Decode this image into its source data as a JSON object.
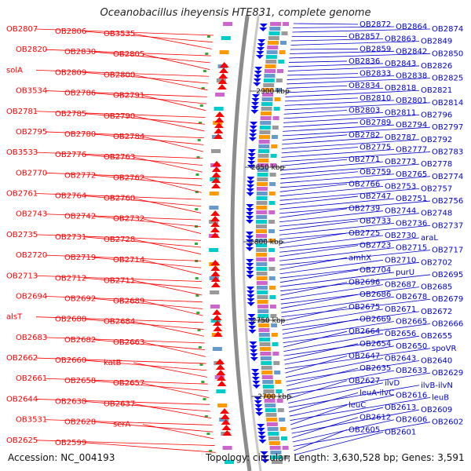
{
  "title": "Oceanobacillus iheyensis HTE831, complete genome",
  "accession": "Accession: NC_004193",
  "topology": "Topology: circular; Length: 3,630,528 bp; Genes: 3,591",
  "colors": {
    "left_labels": "#ff0000",
    "right_labels": "#0000cc",
    "backbone": "#8c8c8c"
  },
  "kbp_marks": [
    "2900 kbp",
    "2850 kbp",
    "2800 kbp",
    "2750 kbp",
    "2700 kbp"
  ],
  "left_labels": [
    "OB2807",
    "OB2806",
    "OB3535",
    "OB2820",
    "OB2830",
    "OB2805",
    "solA",
    "OB2809",
    "OB2800",
    "OB3534",
    "OB2786",
    "OB2791",
    "OB2781",
    "OB2785",
    "OB2790",
    "OB2795",
    "OB2780",
    "OB2784",
    "OB3533",
    "OB2776",
    "OB2763",
    "OB2770",
    "OB2772",
    "OB2762",
    "OB2761",
    "OB2764",
    "OB2760",
    "OB2743",
    "OB2742",
    "OB2732",
    "OB2735",
    "OB2731",
    "OB2728",
    "OB2720",
    "OB2719",
    "OB2714",
    "OB2713",
    "OB2712",
    "OB2711",
    "OB2694",
    "OB2692",
    "OB2689",
    "alsT",
    "OB2688",
    "OB2684",
    "OB2683",
    "OB2682",
    "OB2663",
    "OB2662",
    "OB2660",
    "katB",
    "OB2661",
    "OB2658",
    "OB2657",
    "OB2644",
    "OB2638",
    "OB2637",
    "OB3531",
    "OB2628",
    "serA",
    "OB2625",
    "OB2599"
  ],
  "right_labels": [
    "OB2872",
    "OB2864",
    "OB2874",
    "OB2857",
    "OB2863",
    "OB2849",
    "OB2859",
    "OB2842",
    "OB2850",
    "OB2836",
    "OB2843",
    "OB2826",
    "OB2833",
    "OB2838",
    "OB2825",
    "OB2834",
    "OB2818",
    "OB2821",
    "OB2810",
    "OB2801",
    "OB2814",
    "OB2803",
    "OB2811",
    "OB2796",
    "OB2789",
    "OB2794",
    "OB2797",
    "OB2782",
    "OB2787",
    "OB2792",
    "OB2775",
    "OB2777",
    "OB2783",
    "OB2771",
    "OB2773",
    "OB2778",
    "OB2759",
    "OB2765",
    "OB2774",
    "OB2766",
    "OB2753",
    "OB2757",
    "OB2747",
    "OB2751",
    "OB2756",
    "OB2739",
    "OB2744",
    "OB2748",
    "OB2733",
    "OB2736",
    "OB2737",
    "OB2725",
    "OB2730",
    "araL",
    "OB2723",
    "OB2715",
    "OB2717",
    "amhX",
    "OB2710",
    "OB2702",
    "OB2704",
    "purU",
    "OB2695",
    "OB2696",
    "OB2687",
    "OB2685",
    "OB2686",
    "OB2678",
    "OB2679",
    "OB2675",
    "OB2671",
    "OB2672",
    "OB2669",
    "OB2665",
    "OB2666",
    "OB2664",
    "OB2656",
    "OB2655",
    "OB2654",
    "OB2650",
    "spoVR",
    "OB2647",
    "OB2643",
    "OB2640",
    "OB2635",
    "OB2633",
    "OB2629",
    "OB2627",
    "ilvD",
    "ilvB-ilvN",
    "leuA-ilvC",
    "OB2616",
    "leuB",
    "leuC",
    "OB2613",
    "OB2609",
    "OB2612",
    "OB2606",
    "OB2602",
    "OB2605",
    "OB2601"
  ]
}
